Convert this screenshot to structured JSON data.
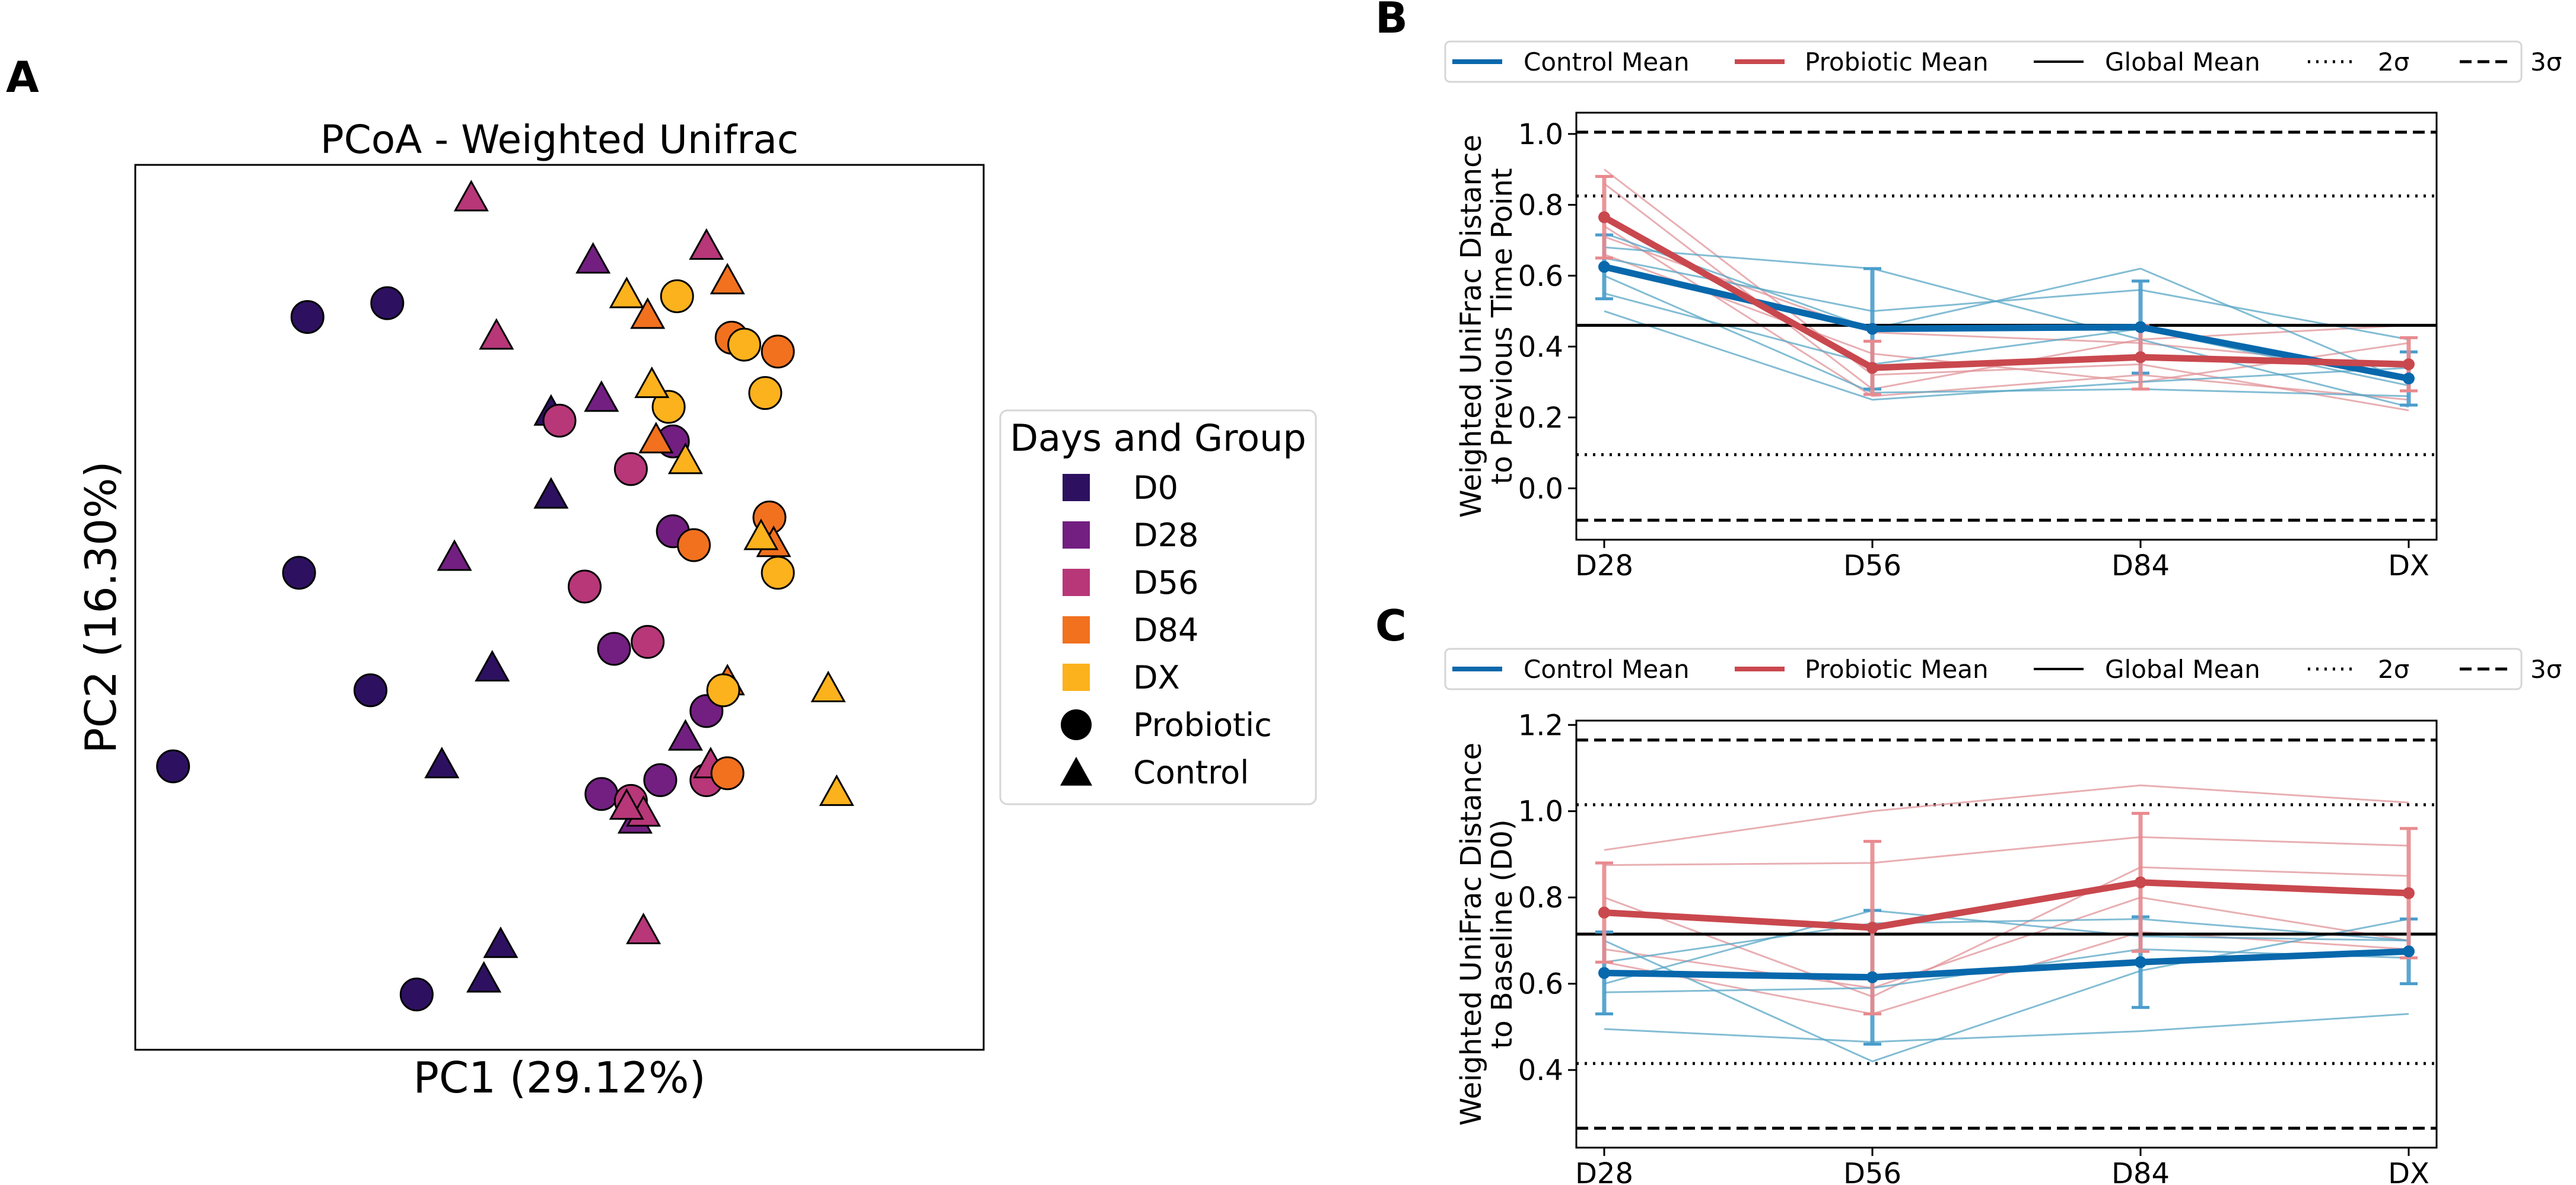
{
  "panels": {
    "a": "A",
    "b": "B",
    "c": "C"
  },
  "chart_data": [
    {
      "id": "A",
      "type": "scatter",
      "title": "PCoA - Weighted Unifrac",
      "xlabel": "PC1 (29.12%)",
      "ylabel": "PC2 (16.30%)",
      "xlim": [
        -0.45,
        0.56
      ],
      "ylim": [
        -0.33,
        0.31
      ],
      "legend": {
        "title": "Days and Group",
        "entries": [
          {
            "label": "D0",
            "marker": "square",
            "color": "#2d1160"
          },
          {
            "label": "D28",
            "marker": "square",
            "color": "#721f81"
          },
          {
            "label": "D56",
            "marker": "square",
            "color": "#b73779"
          },
          {
            "label": "D84",
            "marker": "square",
            "color": "#f1711f"
          },
          {
            "label": "DX",
            "marker": "square",
            "color": "#fcb21d"
          },
          {
            "label": "Probiotic",
            "marker": "circle",
            "color": "#000000"
          },
          {
            "label": "Control",
            "marker": "triangle",
            "color": "#000000"
          }
        ]
      },
      "colors": {
        "D0": "#2d1160",
        "D28": "#721f81",
        "D56": "#b73779",
        "D84": "#f1711f",
        "DX": "#fcb21d"
      },
      "points": [
        {
          "x": -0.245,
          "y": 0.2,
          "day": "D0",
          "group": "Probiotic"
        },
        {
          "x": -0.15,
          "y": 0.21,
          "day": "D0",
          "group": "Probiotic"
        },
        {
          "x": -0.255,
          "y": 0.015,
          "day": "D0",
          "group": "Probiotic"
        },
        {
          "x": -0.17,
          "y": -0.07,
          "day": "D0",
          "group": "Probiotic"
        },
        {
          "x": -0.405,
          "y": -0.125,
          "day": "D0",
          "group": "Probiotic"
        },
        {
          "x": -0.115,
          "y": -0.29,
          "day": "D0",
          "group": "Probiotic"
        },
        {
          "x": -0.025,
          "y": -0.055,
          "day": "D0",
          "group": "Control"
        },
        {
          "x": -0.085,
          "y": -0.125,
          "day": "D0",
          "group": "Control"
        },
        {
          "x": -0.015,
          "y": -0.255,
          "day": "D0",
          "group": "Control"
        },
        {
          "x": -0.035,
          "y": -0.28,
          "day": "D0",
          "group": "Control"
        },
        {
          "x": 0.045,
          "y": 0.07,
          "day": "D0",
          "group": "Control"
        },
        {
          "x": 0.045,
          "y": 0.13,
          "day": "D0",
          "group": "Control"
        },
        {
          "x": 0.19,
          "y": 0.11,
          "day": "D28",
          "group": "Probiotic"
        },
        {
          "x": 0.19,
          "y": 0.045,
          "day": "D28",
          "group": "Probiotic"
        },
        {
          "x": 0.12,
          "y": -0.04,
          "day": "D28",
          "group": "Probiotic"
        },
        {
          "x": 0.175,
          "y": -0.135,
          "day": "D28",
          "group": "Probiotic"
        },
        {
          "x": 0.105,
          "y": -0.145,
          "day": "D28",
          "group": "Probiotic"
        },
        {
          "x": 0.23,
          "y": -0.085,
          "day": "D28",
          "group": "Probiotic"
        },
        {
          "x": -0.07,
          "y": 0.025,
          "day": "D28",
          "group": "Control"
        },
        {
          "x": 0.095,
          "y": 0.24,
          "day": "D28",
          "group": "Control"
        },
        {
          "x": 0.105,
          "y": 0.14,
          "day": "D28",
          "group": "Control"
        },
        {
          "x": 0.145,
          "y": -0.155,
          "day": "D28",
          "group": "Control"
        },
        {
          "x": 0.145,
          "y": -0.165,
          "day": "D28",
          "group": "Control"
        },
        {
          "x": 0.205,
          "y": -0.105,
          "day": "D28",
          "group": "Control"
        },
        {
          "x": 0.235,
          "y": -0.13,
          "day": "D28",
          "group": "Control"
        },
        {
          "x": 0.055,
          "y": 0.125,
          "day": "D56",
          "group": "Probiotic"
        },
        {
          "x": 0.14,
          "y": 0.09,
          "day": "D56",
          "group": "Probiotic"
        },
        {
          "x": 0.085,
          "y": 0.005,
          "day": "D56",
          "group": "Probiotic"
        },
        {
          "x": 0.16,
          "y": -0.035,
          "day": "D56",
          "group": "Probiotic"
        },
        {
          "x": 0.14,
          "y": -0.15,
          "day": "D56",
          "group": "Probiotic"
        },
        {
          "x": 0.23,
          "y": -0.135,
          "day": "D56",
          "group": "Probiotic"
        },
        {
          "x": -0.05,
          "y": 0.285,
          "day": "D56",
          "group": "Control"
        },
        {
          "x": -0.02,
          "y": 0.185,
          "day": "D56",
          "group": "Control"
        },
        {
          "x": 0.23,
          "y": 0.25,
          "day": "D56",
          "group": "Control"
        },
        {
          "x": 0.155,
          "y": -0.16,
          "day": "D56",
          "group": "Control"
        },
        {
          "x": 0.135,
          "y": -0.155,
          "day": "D56",
          "group": "Control"
        },
        {
          "x": 0.155,
          "y": -0.245,
          "day": "D56",
          "group": "Control"
        },
        {
          "x": 0.235,
          "y": -0.125,
          "day": "D56",
          "group": "Control"
        },
        {
          "x": 0.26,
          "y": 0.185,
          "day": "D84",
          "group": "Probiotic"
        },
        {
          "x": 0.315,
          "y": 0.175,
          "day": "D84",
          "group": "Probiotic"
        },
        {
          "x": 0.305,
          "y": 0.055,
          "day": "D84",
          "group": "Probiotic"
        },
        {
          "x": 0.215,
          "y": 0.035,
          "day": "D84",
          "group": "Probiotic"
        },
        {
          "x": 0.255,
          "y": -0.13,
          "day": "D84",
          "group": "Probiotic"
        },
        {
          "x": 0.16,
          "y": 0.2,
          "day": "D84",
          "group": "Control"
        },
        {
          "x": 0.17,
          "y": 0.11,
          "day": "D84",
          "group": "Control"
        },
        {
          "x": 0.255,
          "y": 0.225,
          "day": "D84",
          "group": "Control"
        },
        {
          "x": 0.31,
          "y": 0.035,
          "day": "D84",
          "group": "Control"
        },
        {
          "x": 0.255,
          "y": -0.065,
          "day": "D84",
          "group": "Control"
        },
        {
          "x": 0.195,
          "y": 0.215,
          "day": "DX",
          "group": "Probiotic"
        },
        {
          "x": 0.275,
          "y": 0.18,
          "day": "DX",
          "group": "Probiotic"
        },
        {
          "x": 0.3,
          "y": 0.145,
          "day": "DX",
          "group": "Probiotic"
        },
        {
          "x": 0.185,
          "y": 0.135,
          "day": "DX",
          "group": "Probiotic"
        },
        {
          "x": 0.315,
          "y": 0.015,
          "day": "DX",
          "group": "Probiotic"
        },
        {
          "x": 0.25,
          "y": -0.07,
          "day": "DX",
          "group": "Probiotic"
        },
        {
          "x": 0.135,
          "y": 0.215,
          "day": "DX",
          "group": "Control"
        },
        {
          "x": 0.165,
          "y": 0.15,
          "day": "DX",
          "group": "Control"
        },
        {
          "x": 0.205,
          "y": 0.095,
          "day": "DX",
          "group": "Control"
        },
        {
          "x": 0.295,
          "y": 0.04,
          "day": "DX",
          "group": "Control"
        },
        {
          "x": 0.375,
          "y": -0.07,
          "day": "DX",
          "group": "Control"
        },
        {
          "x": 0.385,
          "y": -0.145,
          "day": "DX",
          "group": "Control"
        }
      ]
    },
    {
      "id": "B",
      "type": "line",
      "categories": [
        "D28",
        "D56",
        "D84",
        "DX"
      ],
      "ylabel": [
        "Weighted UniFrac Distance",
        "to Previous Time Point"
      ],
      "ylim": [
        -0.145,
        1.06
      ],
      "yticks": [
        0.0,
        0.2,
        0.4,
        0.6,
        0.8,
        1.0
      ],
      "ytick_labels": [
        "0.0",
        "0.2",
        "0.4",
        "0.6",
        "0.8",
        "1.0"
      ],
      "legend_position": "top",
      "legend": [
        "Control Mean",
        "Probiotic Mean",
        "Global Mean",
        "2σ",
        "3σ"
      ],
      "colors": {
        "control": "#0868ac",
        "probiotic": "#c9484e",
        "control_ind": "#5aa7c6",
        "probiotic_ind": "#e0949a"
      },
      "series": [
        {
          "name": "Control Mean",
          "values": [
            0.625,
            0.45,
            0.455,
            0.31
          ],
          "err": [
            0.09,
            0.17,
            0.13,
            0.075
          ]
        },
        {
          "name": "Probiotic Mean",
          "values": [
            0.765,
            0.34,
            0.37,
            0.35
          ],
          "err": [
            0.115,
            0.075,
            0.09,
            0.075
          ]
        }
      ],
      "control_individuals": [
        [
          0.72,
          0.45,
          0.62,
          0.3
        ],
        [
          0.65,
          0.5,
          0.56,
          0.42
        ],
        [
          0.6,
          0.27,
          0.28,
          0.26
        ],
        [
          0.55,
          0.35,
          0.45,
          0.29
        ],
        [
          0.68,
          0.62,
          0.42,
          0.23
        ],
        [
          0.5,
          0.25,
          0.3,
          0.34
        ]
      ],
      "probiotic_individuals": [
        [
          0.9,
          0.32,
          0.35,
          0.22
        ],
        [
          0.86,
          0.28,
          0.42,
          0.46
        ],
        [
          0.74,
          0.26,
          0.32,
          0.25
        ],
        [
          0.66,
          0.38,
          0.3,
          0.41
        ],
        [
          0.71,
          0.44,
          0.41,
          0.34
        ]
      ],
      "global_mean": 0.46,
      "sigma2": [
        0.095,
        0.825
      ],
      "sigma3": [
        -0.09,
        1.005
      ]
    },
    {
      "id": "C",
      "type": "line",
      "categories": [
        "D28",
        "D56",
        "D84",
        "DX"
      ],
      "ylabel": [
        "Weighted UniFrac Distance",
        "to Baseline (D0)"
      ],
      "ylim": [
        0.22,
        1.21
      ],
      "yticks": [
        0.4,
        0.6,
        0.8,
        1.0,
        1.2
      ],
      "ytick_labels": [
        "0.4",
        "0.6",
        "0.8",
        "1.0",
        "1.2"
      ],
      "legend_position": "top",
      "legend": [
        "Control Mean",
        "Probiotic Mean",
        "Global Mean",
        "2σ",
        "3σ"
      ],
      "colors": {
        "control": "#0868ac",
        "probiotic": "#c9484e",
        "control_ind": "#5aa7c6",
        "probiotic_ind": "#e0949a"
      },
      "series": [
        {
          "name": "Control Mean",
          "values": [
            0.625,
            0.615,
            0.65,
            0.675
          ],
          "err": [
            0.095,
            0.155,
            0.105,
            0.075
          ]
        },
        {
          "name": "Probiotic Mean",
          "values": [
            0.765,
            0.73,
            0.835,
            0.81
          ],
          "err": [
            0.115,
            0.2,
            0.16,
            0.15
          ]
        }
      ],
      "control_individuals": [
        [
          0.495,
          0.465,
          0.49,
          0.53
        ],
        [
          0.6,
          0.77,
          0.71,
          0.7
        ],
        [
          0.7,
          0.42,
          0.63,
          0.75
        ],
        [
          0.58,
          0.59,
          0.68,
          0.66
        ],
        [
          0.65,
          0.74,
          0.75,
          0.7
        ]
      ],
      "probiotic_individuals": [
        [
          0.91,
          1.0,
          1.06,
          1.02
        ],
        [
          0.875,
          0.88,
          0.94,
          0.92
        ],
        [
          0.8,
          0.57,
          0.87,
          0.85
        ],
        [
          0.65,
          0.53,
          0.72,
          0.68
        ],
        [
          0.68,
          0.59,
          0.8,
          0.7
        ]
      ],
      "global_mean": 0.715,
      "sigma2": [
        0.415,
        1.015
      ],
      "sigma3": [
        0.265,
        1.165
      ]
    }
  ]
}
